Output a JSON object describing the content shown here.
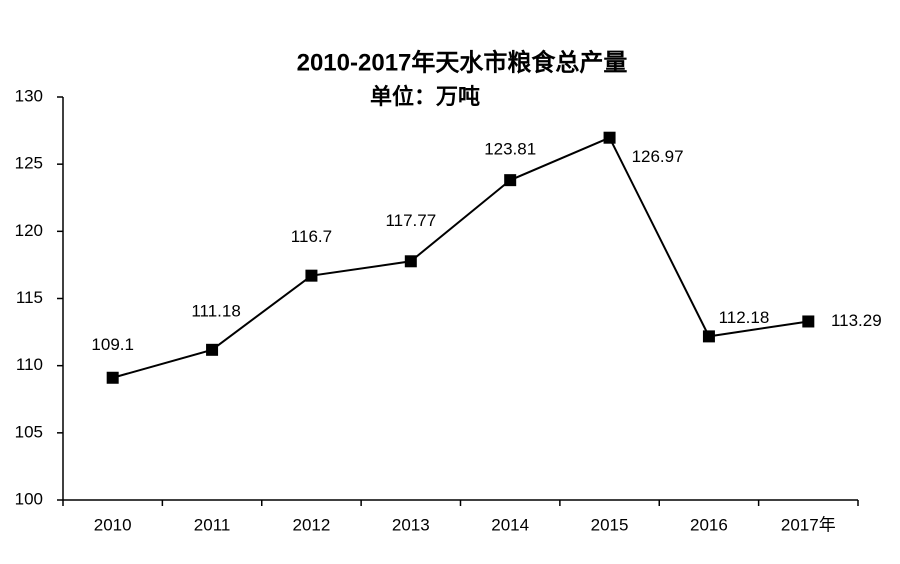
{
  "chart_data": {
    "type": "line",
    "title": "2010-2017年天水市粮食总产量",
    "subtitle": "单位：万吨",
    "categories": [
      "2010",
      "2011",
      "2012",
      "2013",
      "2014",
      "2015",
      "2016",
      "2017年"
    ],
    "series": [
      {
        "name": "粮食总产量",
        "color": "#000000",
        "values": [
          109.1,
          111.18,
          116.7,
          117.77,
          123.81,
          126.97,
          112.18,
          113.29
        ]
      }
    ],
    "ylim": [
      100,
      130
    ],
    "yticks": [
      100,
      105,
      110,
      115,
      120,
      125,
      130
    ],
    "grid": false
  }
}
